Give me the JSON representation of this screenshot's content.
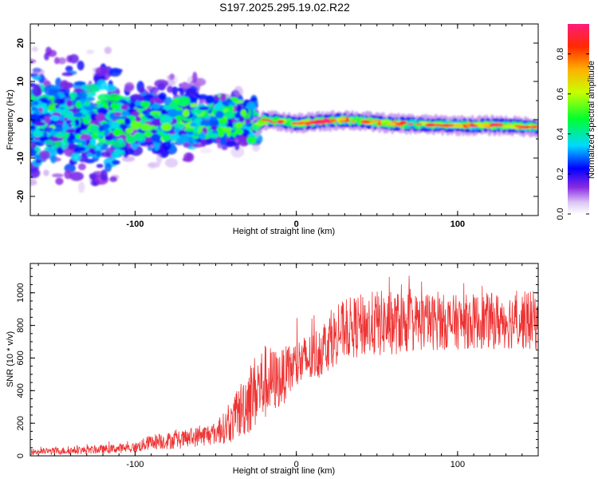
{
  "chart_data": [
    {
      "type": "heatmap",
      "title": "S197.2025.295.19.02.R22",
      "xlabel": "Height of straight line (km)",
      "ylabel": "Frequency (Hz)",
      "xlim": [
        -165,
        150
      ],
      "ylim": [
        -25,
        25
      ],
      "xticks": [
        -100,
        0,
        100
      ],
      "yticks": [
        -20,
        -10,
        0,
        10,
        20
      ],
      "colorbar": {
        "label": "Normalized spectral amplitude",
        "ticks": [
          0.0,
          0.2,
          0.4,
          0.6,
          0.8
        ],
        "range": [
          0,
          0.95
        ]
      },
      "ridge": {
        "description_points_x": [
          -165,
          -120,
          -80,
          -40,
          -25,
          -20,
          0,
          30,
          60,
          100,
          130,
          150
        ],
        "center_freq_hz": [
          0,
          -1,
          0,
          1,
          -2,
          0,
          -1,
          0,
          -1,
          -1.5,
          -1.5,
          -2
        ],
        "peak_amplitude": [
          0.25,
          0.4,
          0.45,
          0.45,
          0.4,
          0.75,
          0.85,
          0.95,
          0.85,
          0.85,
          0.8,
          0.9
        ]
      }
    },
    {
      "type": "line",
      "xlabel": "Height of straight line (km)",
      "ylabel": "SNR (10 * v/v)",
      "xlim": [
        -165,
        150
      ],
      "ylim": [
        0,
        1180
      ],
      "xticks": [
        -100,
        0,
        100
      ],
      "yticks": [
        0,
        200,
        400,
        600,
        800,
        1000
      ],
      "series_color": "#ee3333",
      "envelope": {
        "x": [
          -165,
          -130,
          -100,
          -90,
          -70,
          -50,
          -40,
          -30,
          -20,
          -10,
          0,
          10,
          20,
          30,
          50,
          80,
          100,
          130,
          150
        ],
        "mean_snr": [
          25,
          35,
          50,
          85,
          100,
          140,
          200,
          350,
          450,
          470,
          560,
          600,
          700,
          780,
          810,
          820,
          820,
          830,
          830
        ],
        "spread": [
          25,
          30,
          40,
          60,
          70,
          90,
          150,
          280,
          300,
          220,
          200,
          200,
          220,
          230,
          260,
          220,
          210,
          220,
          230
        ]
      }
    }
  ]
}
